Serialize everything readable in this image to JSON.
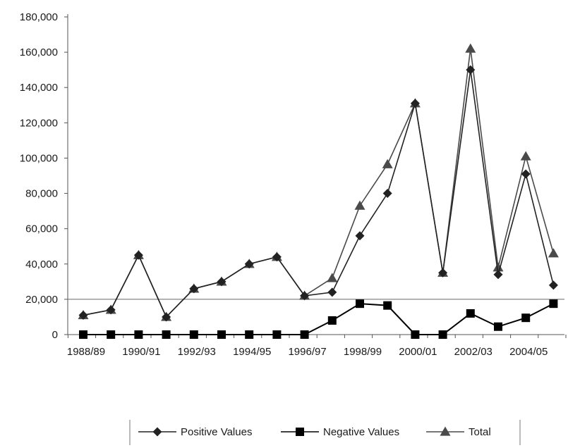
{
  "chart_data": {
    "type": "line",
    "title": "",
    "xlabel": "",
    "ylabel": "",
    "ylim": [
      0,
      180000
    ],
    "y_ticks": [
      "0",
      "20,000",
      "40,000",
      "60,000",
      "80,000",
      "100,000",
      "120,000",
      "140,000",
      "160,000",
      "180,000"
    ],
    "categories": [
      "1988/89",
      "1989/90",
      "1990/91",
      "1991/92",
      "1992/93",
      "1993/94",
      "1994/95",
      "1995/96",
      "1996/97",
      "1997/98",
      "1998/99",
      "1999/00",
      "2000/01",
      "2001/02",
      "2002/03",
      "2003/04",
      "2004/05",
      "2005/06"
    ],
    "x_tick_labels": [
      "1988/89",
      "",
      "1990/91",
      "",
      "1992/93",
      "",
      "1994/95",
      "",
      "1996/97",
      "",
      "1998/99",
      "",
      "2000/01",
      "",
      "2002/03",
      "",
      "2004/05",
      ""
    ],
    "reference_line_y": 20000,
    "grid": false,
    "legend_position": "bottom",
    "series": [
      {
        "name": "Positive Values",
        "marker": "diamond",
        "color": "#222222",
        "values": [
          11000,
          14000,
          45000,
          10000,
          26000,
          30000,
          40000,
          44000,
          22000,
          24000,
          56000,
          80000,
          131000,
          35000,
          150000,
          34000,
          91000,
          28000
        ]
      },
      {
        "name": "Negative Values",
        "marker": "square",
        "color": "#000000",
        "values": [
          0,
          0,
          0,
          0,
          0,
          0,
          0,
          0,
          0,
          8000,
          17500,
          16500,
          0,
          0,
          12000,
          4500,
          9500,
          17500
        ]
      },
      {
        "name": "Total",
        "marker": "triangle",
        "color": "#4a4a4a",
        "values": [
          11000,
          14000,
          45000,
          10000,
          26000,
          30000,
          40000,
          44000,
          22000,
          32000,
          73000,
          96500,
          131000,
          35000,
          162000,
          38000,
          101000,
          46000
        ]
      }
    ]
  }
}
